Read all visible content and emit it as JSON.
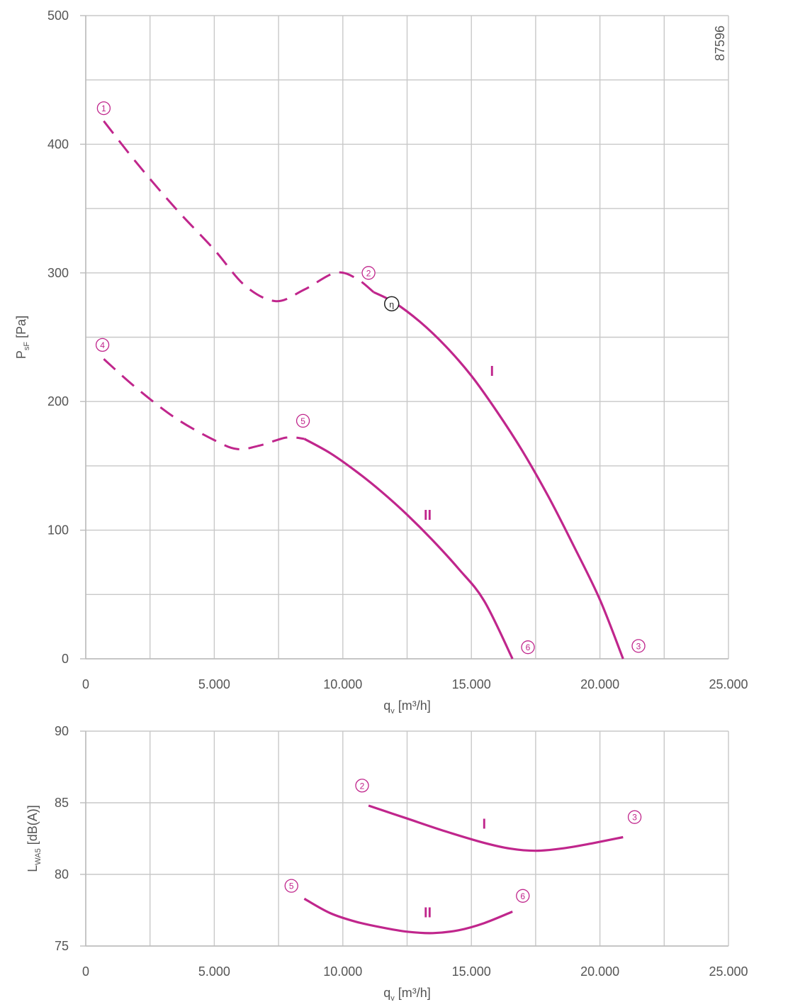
{
  "accent_color": "#c0268c",
  "grid_color": "#c8c8c8",
  "drawing_code": "87596",
  "eta_symbol": "η",
  "chart_data": [
    {
      "type": "line",
      "title": "",
      "xlabel": {
        "main": "q",
        "sub": "v",
        "unit": " [m³/h]"
      },
      "ylabel": {
        "main": "P",
        "sub": "sF",
        "unit": " [Pa]"
      },
      "xlim": [
        0,
        25000
      ],
      "ylim": [
        0,
        500
      ],
      "x_ticks": [
        0,
        5000,
        10000,
        15000,
        20000,
        25000
      ],
      "x_tick_labels": [
        "0",
        "5.000",
        "10.000",
        "15.000",
        "20.000",
        "25.000"
      ],
      "y_ticks": [
        0,
        100,
        200,
        300,
        400,
        500
      ],
      "y_tick_labels": [
        "0",
        "100",
        "200",
        "300",
        "400",
        "500"
      ],
      "grid": true,
      "series": [
        {
          "name": "I",
          "dashed": [
            [
              700,
              418
            ],
            [
              2000,
              385
            ],
            [
              3500,
              350
            ],
            [
              5000,
              318
            ],
            [
              6200,
              290
            ],
            [
              7400,
              278
            ],
            [
              8500,
              287
            ],
            [
              9700,
              300
            ],
            [
              10500,
              296
            ],
            [
              11200,
              285
            ]
          ],
          "solid": [
            [
              11200,
              285
            ],
            [
              12000,
              277
            ],
            [
              13000,
              262
            ],
            [
              14000,
              243
            ],
            [
              15000,
              220
            ],
            [
              16000,
              192
            ],
            [
              17000,
              161
            ],
            [
              18000,
              126
            ],
            [
              19000,
              87
            ],
            [
              20000,
              46
            ],
            [
              20900,
              0
            ]
          ],
          "label_pos": [
            15800,
            220
          ]
        },
        {
          "name": "II",
          "dashed": [
            [
              700,
              233
            ],
            [
              2000,
              210
            ],
            [
              3500,
              187
            ],
            [
              5000,
              170
            ],
            [
              5900,
              163
            ],
            [
              6800,
              166
            ],
            [
              7800,
              172
            ],
            [
              8500,
              171
            ]
          ],
          "solid": [
            [
              8500,
              171
            ],
            [
              9500,
              160
            ],
            [
              10500,
              146
            ],
            [
              11500,
              130
            ],
            [
              12500,
              112
            ],
            [
              13500,
              92
            ],
            [
              14500,
              70
            ],
            [
              15500,
              45
            ],
            [
              16600,
              0
            ]
          ],
          "label_pos": [
            13300,
            108
          ]
        }
      ],
      "markers": [
        {
          "label": "1",
          "x": 700,
          "y": 428
        },
        {
          "label": "2",
          "x": 11000,
          "y": 300
        },
        {
          "label": "3",
          "x": 21500,
          "y": 10
        },
        {
          "label": "4",
          "x": 650,
          "y": 244
        },
        {
          "label": "5",
          "x": 8450,
          "y": 185
        },
        {
          "label": "6",
          "x": 17200,
          "y": 9
        }
      ],
      "eta_point": {
        "x": 11900,
        "y": 276
      }
    },
    {
      "type": "line",
      "title": "",
      "xlabel": {
        "main": "q",
        "sub": "v",
        "unit": " [m³/h]"
      },
      "ylabel": {
        "main": "L",
        "sub": "WA5",
        "unit": " [dB(A)]"
      },
      "xlim": [
        0,
        25000
      ],
      "ylim": [
        75,
        90
      ],
      "x_ticks": [
        0,
        5000,
        10000,
        15000,
        20000,
        25000
      ],
      "x_tick_labels": [
        "0",
        "5.000",
        "10.000",
        "15.000",
        "20.000",
        "25.000"
      ],
      "y_ticks": [
        75,
        80,
        85,
        90
      ],
      "y_tick_labels": [
        "75",
        "80",
        "85",
        "90"
      ],
      "grid": true,
      "series": [
        {
          "name": "I",
          "solid": [
            [
              11000,
              84.8
            ],
            [
              12500,
              83.9
            ],
            [
              14000,
              83.0
            ],
            [
              15500,
              82.2
            ],
            [
              16500,
              81.8
            ],
            [
              17500,
              81.65
            ],
            [
              18500,
              81.8
            ],
            [
              19500,
              82.1
            ],
            [
              20900,
              82.6
            ]
          ],
          "label_pos": [
            15500,
            83.2
          ]
        },
        {
          "name": "II",
          "solid": [
            [
              8500,
              78.3
            ],
            [
              9500,
              77.3
            ],
            [
              10500,
              76.7
            ],
            [
              11500,
              76.3
            ],
            [
              12500,
              76.0
            ],
            [
              13500,
              75.9
            ],
            [
              14500,
              76.1
            ],
            [
              15500,
              76.6
            ],
            [
              16600,
              77.4
            ]
          ],
          "label_pos": [
            13300,
            77.0
          ]
        }
      ],
      "markers": [
        {
          "label": "2",
          "x": 10750,
          "y": 86.2
        },
        {
          "label": "3",
          "x": 21350,
          "y": 84.0
        },
        {
          "label": "5",
          "x": 8000,
          "y": 79.2
        },
        {
          "label": "6",
          "x": 17000,
          "y": 78.5
        }
      ]
    }
  ]
}
